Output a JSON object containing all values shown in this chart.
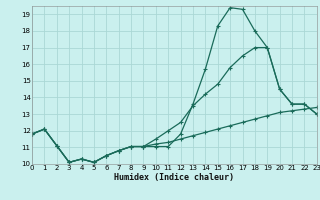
{
  "xlabel": "Humidex (Indice chaleur)",
  "bg_color": "#caf0ee",
  "grid_color": "#aad8d5",
  "line_color": "#1a6b5a",
  "xlim": [
    0,
    23
  ],
  "ylim": [
    10,
    19.5
  ],
  "yticks": [
    10,
    11,
    12,
    13,
    14,
    15,
    16,
    17,
    18,
    19
  ],
  "xticks": [
    0,
    1,
    2,
    3,
    4,
    5,
    6,
    7,
    8,
    9,
    10,
    11,
    12,
    13,
    14,
    15,
    16,
    17,
    18,
    19,
    20,
    21,
    22,
    23
  ],
  "curve1_x": [
    0,
    1,
    2,
    3,
    4,
    5,
    6,
    7,
    8,
    9,
    10,
    11,
    12,
    13,
    14,
    15,
    16,
    17,
    18,
    19,
    20,
    21,
    22,
    23
  ],
  "curve1_y": [
    11.8,
    12.1,
    11.1,
    10.1,
    10.3,
    10.1,
    10.5,
    10.8,
    11.05,
    11.05,
    11.05,
    11.05,
    11.8,
    13.6,
    15.7,
    18.3,
    19.4,
    19.3,
    18.0,
    17.0,
    14.5,
    13.6,
    13.6,
    13.0
  ],
  "curve2_x": [
    0,
    1,
    2,
    3,
    4,
    5,
    6,
    7,
    8,
    9,
    10,
    11,
    12,
    13,
    14,
    15,
    16,
    17,
    18,
    19,
    20,
    21,
    22,
    23
  ],
  "curve2_y": [
    11.8,
    12.1,
    11.1,
    10.1,
    10.3,
    10.1,
    10.5,
    10.8,
    11.05,
    11.05,
    11.5,
    12.0,
    12.5,
    13.5,
    14.2,
    14.8,
    15.8,
    16.5,
    17.0,
    17.0,
    14.5,
    13.6,
    13.6,
    13.0
  ],
  "curve3_x": [
    0,
    1,
    2,
    3,
    4,
    5,
    6,
    7,
    8,
    9,
    10,
    11,
    12,
    13,
    14,
    15,
    16,
    17,
    18,
    19,
    20,
    21,
    22,
    23
  ],
  "curve3_y": [
    11.8,
    12.1,
    11.1,
    10.1,
    10.3,
    10.1,
    10.5,
    10.8,
    11.05,
    11.05,
    11.2,
    11.3,
    11.5,
    11.7,
    11.9,
    12.1,
    12.3,
    12.5,
    12.7,
    12.9,
    13.1,
    13.2,
    13.3,
    13.4
  ],
  "marker_size": 2.5,
  "line_width": 0.9,
  "xlabel_fontsize": 6,
  "tick_fontsize": 5
}
